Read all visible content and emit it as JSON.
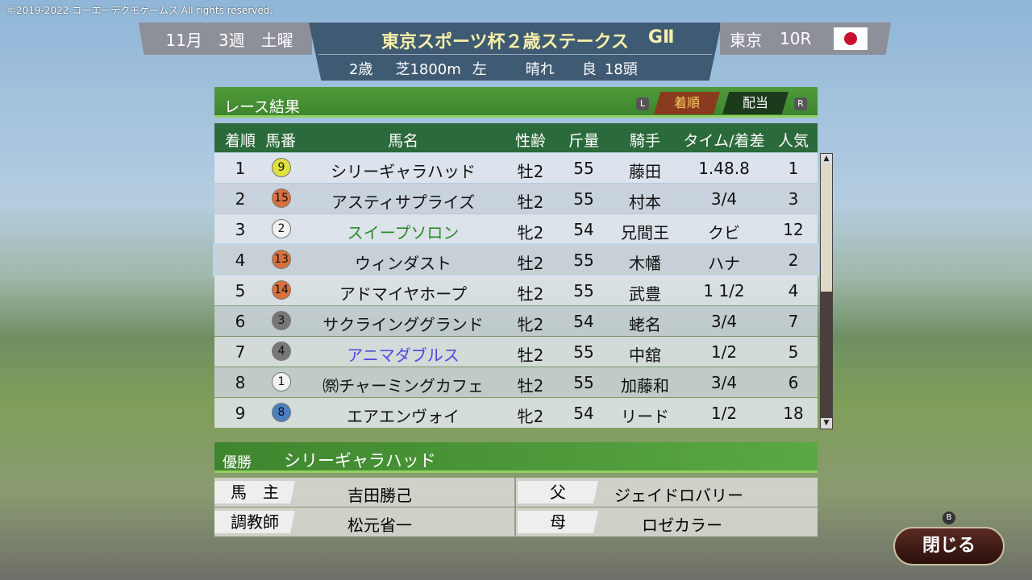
{
  "copyright": "©2019-2022 コーエーテクモゲームス All rights reserved.",
  "header": {
    "month": "11月",
    "week": "3週",
    "day": "土曜",
    "race_name": "東京スポーツ杯２歳ステークス",
    "grade": "GⅡ",
    "conditions": [
      "2歳",
      "芝1800m",
      "左",
      "晴れ",
      "良",
      "18頭"
    ],
    "venue": "東京",
    "race_no": "10R",
    "flag": "japan-flag"
  },
  "panel": {
    "title": "レース結果",
    "key_left": "L",
    "key_right": "R",
    "tabs": [
      {
        "label": "着順",
        "active": true
      },
      {
        "label": "配当",
        "active": false
      }
    ]
  },
  "columns": [
    "着順",
    "馬番",
    "馬名",
    "性齢",
    "斤量",
    "騎手",
    "タイム/着差",
    "人気"
  ],
  "rows": [
    {
      "pos": "1",
      "num": "9",
      "gate_color": "#e0e040",
      "name": "シリーギャラハッド",
      "name_color": "#111111",
      "sexage": "牡2",
      "weight": "55",
      "jockey": "藤田",
      "margin": "1.48.8",
      "pop": "1"
    },
    {
      "pos": "2",
      "num": "15",
      "gate_color": "#d9703e",
      "name": "アスティサプライズ",
      "name_color": "#111111",
      "sexage": "牡2",
      "weight": "55",
      "jockey": "村本",
      "margin": "3/4",
      "pop": "3"
    },
    {
      "pos": "3",
      "num": "2",
      "gate_color": "#f2f2f2",
      "name": "スイープソロン",
      "name_color": "#2a8a2a",
      "sexage": "牝2",
      "weight": "54",
      "jockey": "兄間王",
      "margin": "クビ",
      "pop": "12"
    },
    {
      "pos": "4",
      "num": "13",
      "gate_color": "#d9703e",
      "name": "ウィンダスト",
      "name_color": "#111111",
      "sexage": "牡2",
      "weight": "55",
      "jockey": "木幡",
      "margin": "ハナ",
      "pop": "2"
    },
    {
      "pos": "5",
      "num": "14",
      "gate_color": "#d9703e",
      "name": "アドマイヤホープ",
      "name_color": "#111111",
      "sexage": "牡2",
      "weight": "55",
      "jockey": "武豊",
      "margin": "1 1/2",
      "pop": "4"
    },
    {
      "pos": "6",
      "num": "3",
      "gate_color": "#777777",
      "name": "サクラインググランド",
      "name_color": "#111111",
      "sexage": "牝2",
      "weight": "54",
      "jockey": "蛯名",
      "margin": "3/4",
      "pop": "7"
    },
    {
      "pos": "7",
      "num": "4",
      "gate_color": "#777777",
      "name": "アニマダブルス",
      "name_color": "#4a4ae0",
      "sexage": "牡2",
      "weight": "55",
      "jockey": "中舘",
      "margin": "1/2",
      "pop": "5"
    },
    {
      "pos": "8",
      "num": "1",
      "gate_color": "#f2f2f2",
      "name": "㉀チャーミングカフェ",
      "name_color": "#111111",
      "sexage": "牡2",
      "weight": "55",
      "jockey": "加藤和",
      "margin": "3/4",
      "pop": "6"
    },
    {
      "pos": "9",
      "num": "8",
      "gate_color": "#4a7fc0",
      "name": "エアエンヴォイ",
      "name_color": "#111111",
      "sexage": "牝2",
      "weight": "54",
      "jockey": "リード",
      "margin": "1/2",
      "pop": "18"
    }
  ],
  "winner": {
    "label": "優勝",
    "name": "シリーギャラハッド",
    "owner_label": "馬　主",
    "owner": "吉田勝己",
    "trainer_label": "調教師",
    "trainer": "松元省一",
    "sire_label": "父",
    "sire": "ジェイドロバリー",
    "dam_label": "母",
    "dam": "ロゼカラー"
  },
  "close": {
    "key": "B",
    "label": "閉じる"
  }
}
